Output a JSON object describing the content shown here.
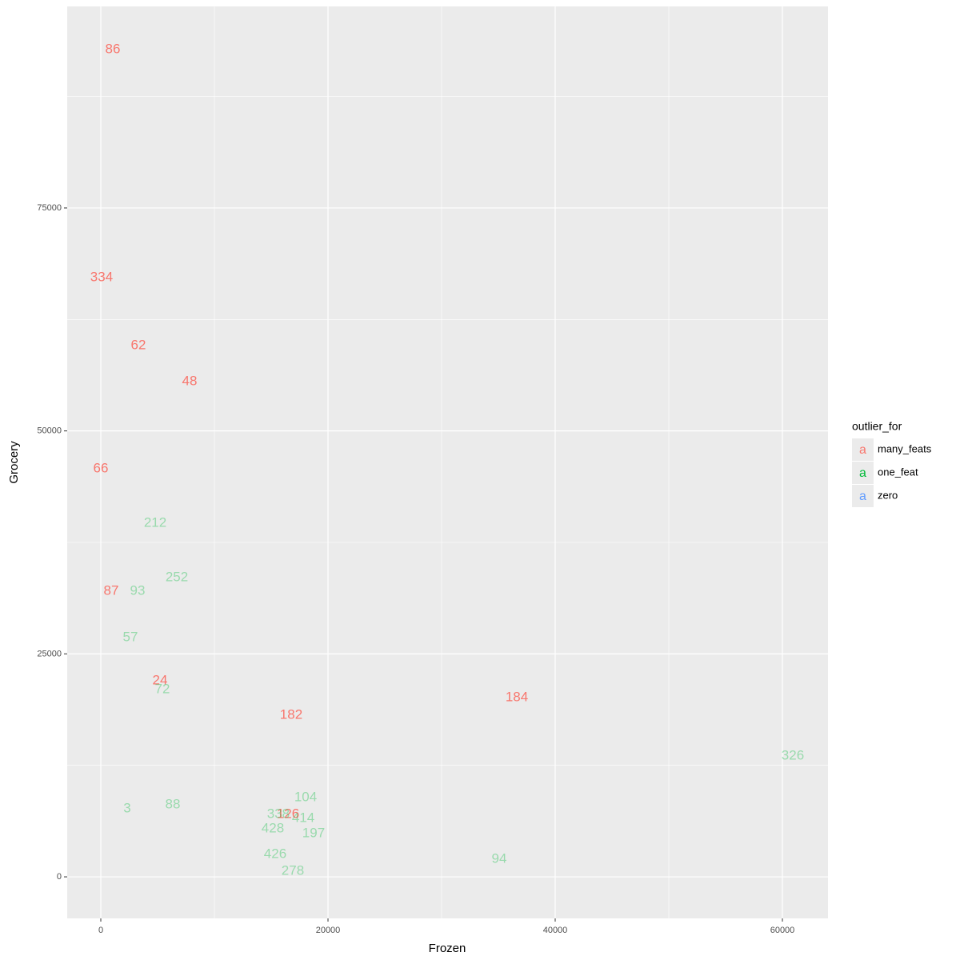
{
  "chart_data": {
    "type": "scatter",
    "mark": "text",
    "x_label": "Frozen",
    "y_label": "Grocery",
    "legend_title": "outlier_for",
    "legend_glyph": "a",
    "legend_position": "right",
    "xlim": [
      -2958,
      64014
    ],
    "ylim": [
      -4660,
      97600
    ],
    "xticks": [
      0,
      20000,
      40000,
      60000
    ],
    "yticks": [
      0,
      25000,
      50000,
      75000
    ],
    "minor_xticks": [
      10000,
      30000,
      50000
    ],
    "minor_yticks": [
      12500,
      37500,
      62500,
      87500
    ],
    "grid": true,
    "series": [
      {
        "name": "many_feats",
        "color": "#F8766D",
        "alpha": 1,
        "labels": [
          "86",
          "334",
          "62",
          "48",
          "66",
          "87",
          "24",
          "182",
          "184",
          "126"
        ],
        "x": [
          1056,
          70,
          3310,
          7817,
          0,
          915,
          5211,
          16760,
          36620,
          16480
        ],
        "values": [
          92750,
          67190,
          59560,
          55530,
          45750,
          32020,
          21980,
          18120,
          20090,
          7000
        ]
      },
      {
        "name": "one_feat",
        "color": "#00BA38",
        "alpha": 0.35,
        "labels": [
          "212",
          "252",
          "93",
          "57",
          "72",
          "326",
          "104",
          "3",
          "88",
          "338",
          "414",
          "197",
          "428",
          "426",
          "278",
          "94"
        ],
        "x": [
          4789,
          6690,
          3239,
          2606,
          5423,
          60915,
          18030,
          2324,
          6338,
          15630,
          17820,
          18730,
          15140,
          15350,
          16900,
          35070
        ],
        "values": [
          39650,
          33550,
          32020,
          26820,
          20990,
          13540,
          8880,
          7620,
          8070,
          7000,
          6550,
          4840,
          5380,
          2510,
          630,
          1970
        ]
      },
      {
        "name": "zero",
        "color": "#619CFF",
        "alpha": 0.05,
        "labels": [],
        "x": [],
        "values": []
      }
    ]
  }
}
